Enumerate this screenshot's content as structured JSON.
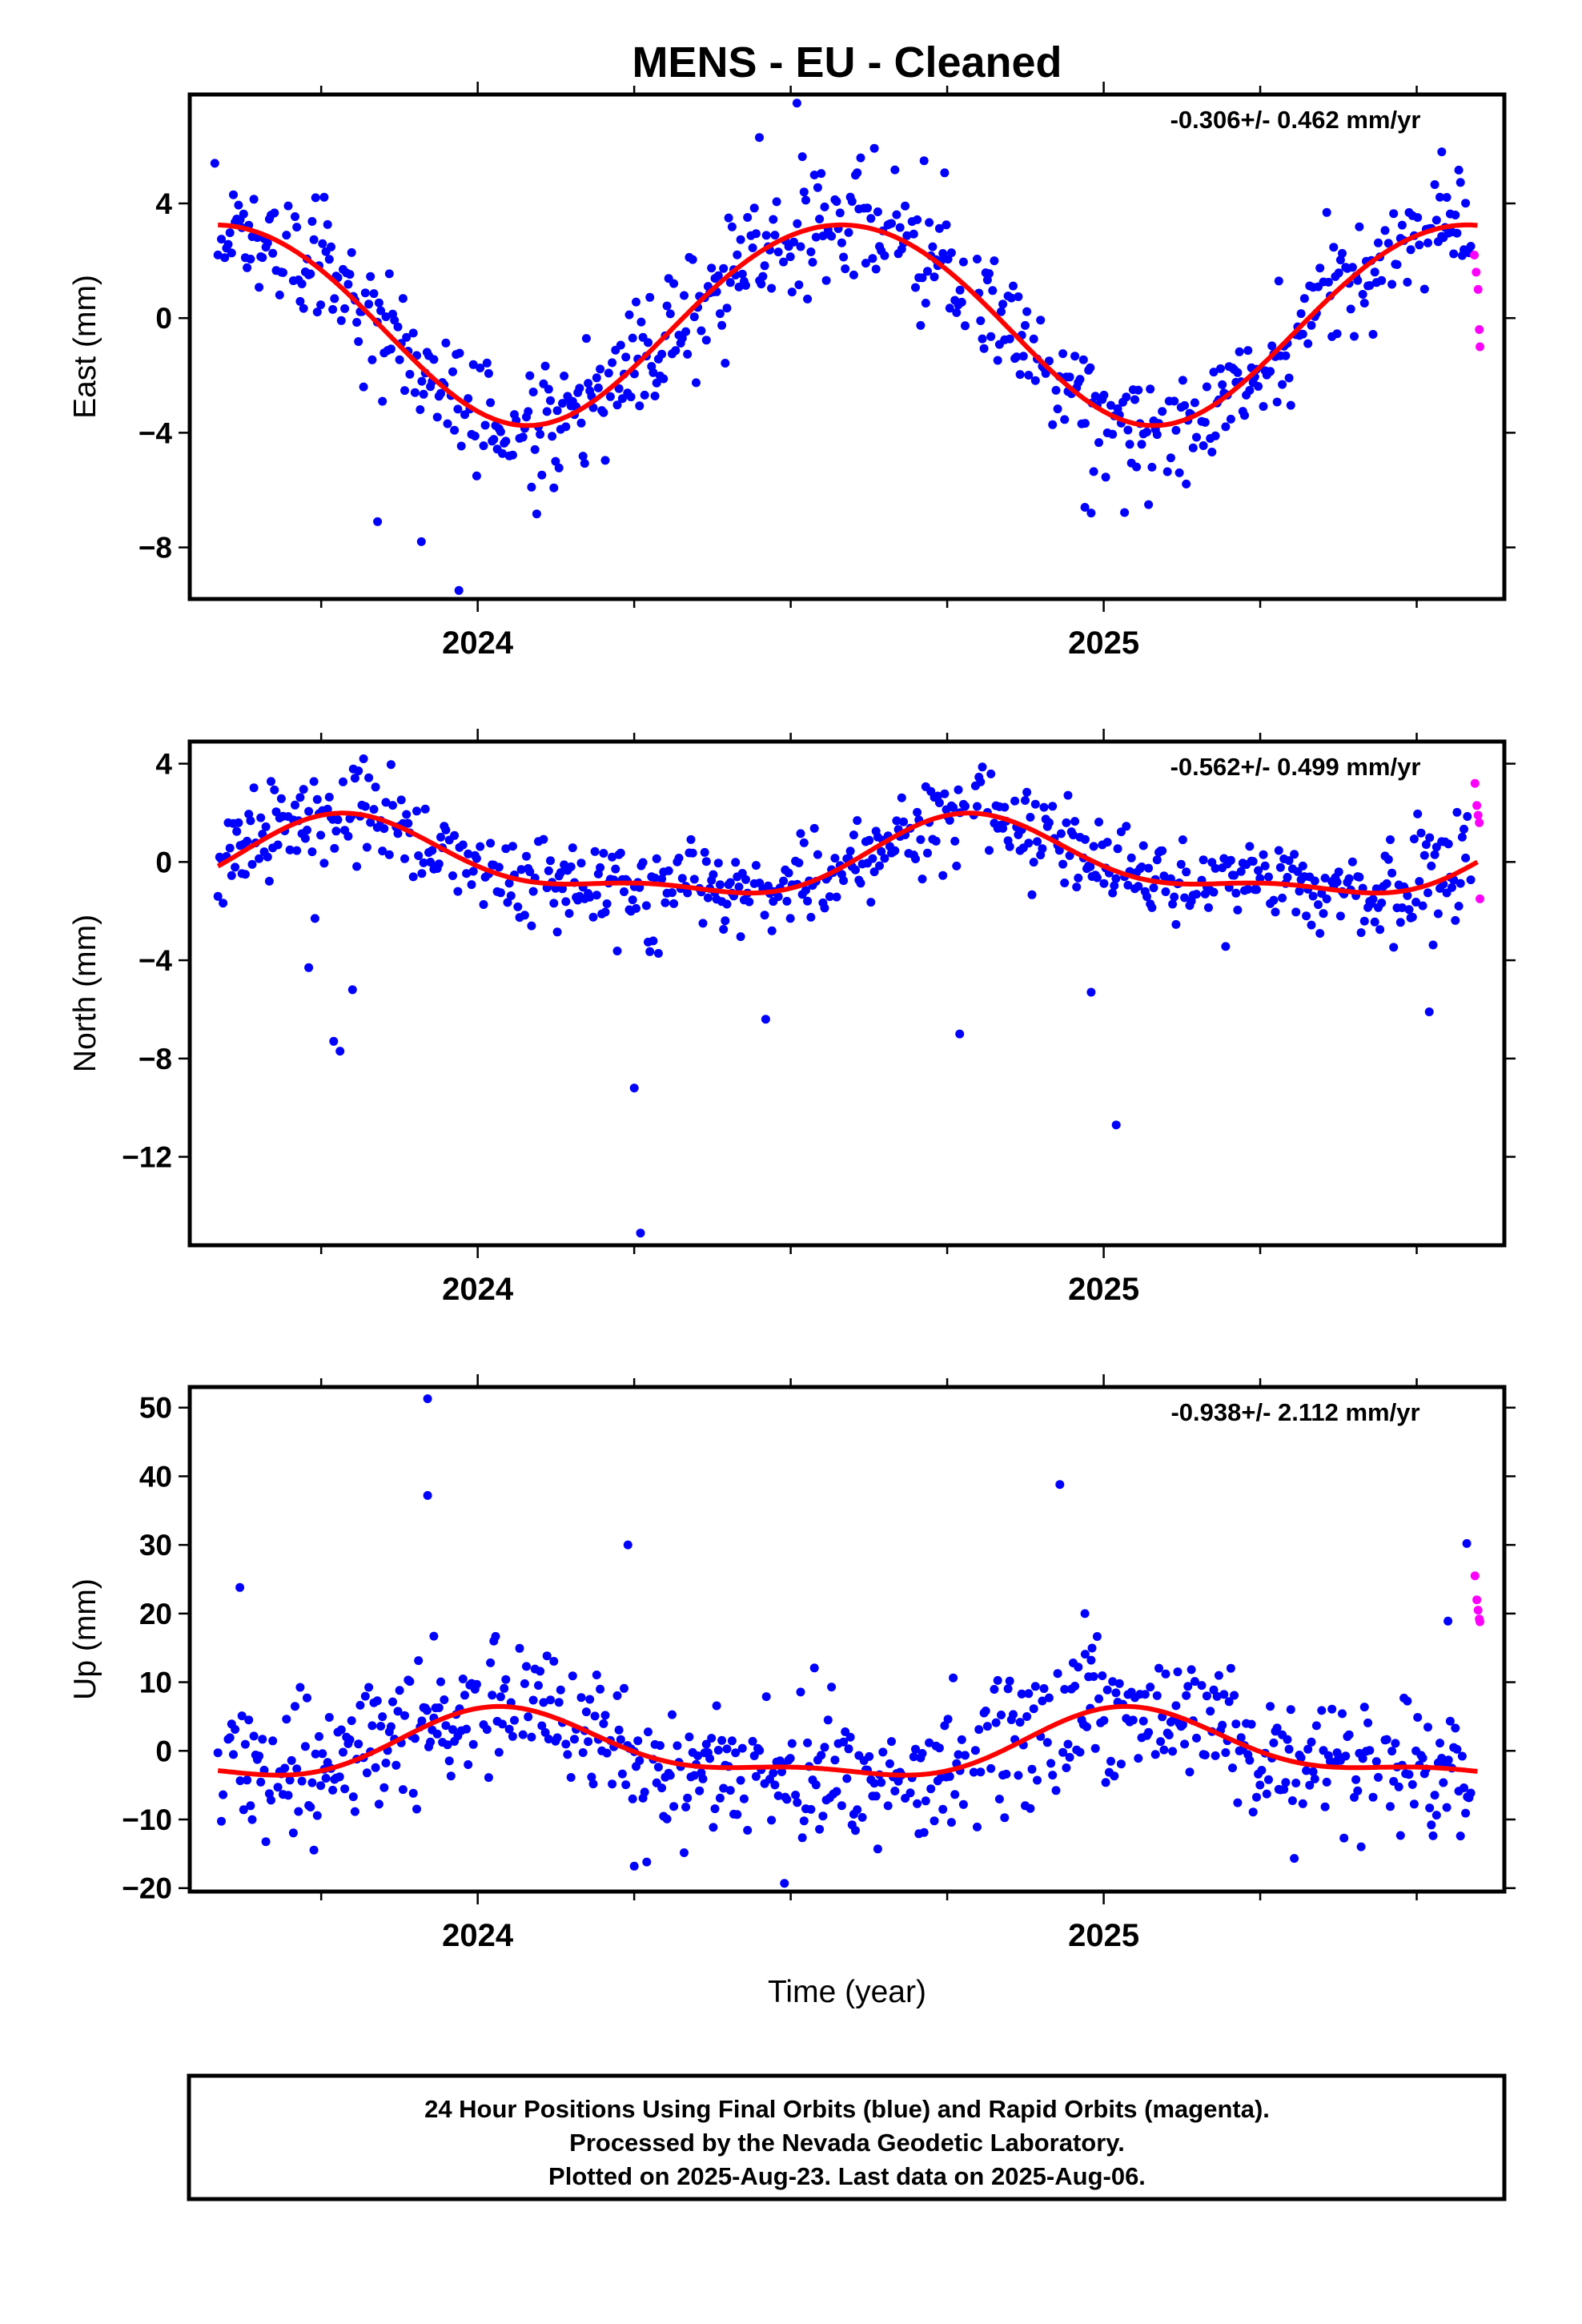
{
  "title": "MENS  - EU - Cleaned",
  "colors": {
    "final": "#0000ff",
    "rapid": "#ff00ff",
    "model": "#ff0000",
    "frame": "#000000"
  },
  "xaxis_label": "Time (year)",
  "footer": {
    "line1": "24 Hour Positions Using Final Orbits (blue) and Rapid Orbits (magenta).",
    "line2": "Processed by the Nevada Geodetic Laboratory.",
    "line3": "Plotted on 2025-Aug-23. Last data on 2025-Aug-06."
  },
  "chart_data": [
    {
      "type": "scatter",
      "panel": "east",
      "ylabel": "East (mm)",
      "rate_label": "-0.306+/- 0.462 mm/yr",
      "xlim": [
        2023.54,
        2025.64
      ],
      "ylim": [
        -9.8,
        7.8
      ],
      "yticks": [
        -8,
        -4,
        0,
        4
      ],
      "xticks": [
        2024,
        2025
      ],
      "series": [
        {
          "name": "Final Orbits",
          "color": "#0000ff",
          "seasonal": {
            "offset": -0.1,
            "amp1": 3.5,
            "phase1": 0.33,
            "amp2": 0.15,
            "phase2": 0.7,
            "noise": 1.1,
            "seed": 11
          }
        },
        {
          "name": "Rapid Orbits",
          "color": "#ff00ff",
          "x": [
            2025.592,
            2025.595,
            2025.598,
            2025.6,
            2025.601
          ],
          "y": [
            2.2,
            1.6,
            1.0,
            -0.4,
            -1.0
          ]
        },
        {
          "name": "Model",
          "color": "#ff0000",
          "type": "line",
          "seasonal": {
            "offset": -0.1,
            "amp1": 3.5,
            "phase1": 0.33,
            "amp2": 0.15,
            "phase2": 0.7
          }
        }
      ],
      "outliers": {
        "x": [
          2023.58,
          2023.84,
          2023.91,
          2023.97,
          2024.51,
          2024.45,
          2024.97,
          2024.98,
          2025.54
        ],
        "y": [
          5.4,
          -7.1,
          -7.8,
          -9.5,
          7.5,
          6.3,
          -6.6,
          -6.8,
          5.8
        ]
      }
    },
    {
      "type": "scatter",
      "panel": "north",
      "ylabel": "North (mm)",
      "rate_label": "-0.562+/- 0.499 mm/yr",
      "xlim": [
        2023.54,
        2025.64
      ],
      "ylim": [
        -15.6,
        4.9
      ],
      "yticks": [
        -12,
        -8,
        -4,
        0,
        4
      ],
      "xticks": [
        2024,
        2025
      ],
      "series": [
        {
          "name": "Final Orbits",
          "color": "#0000ff",
          "seasonal": {
            "offset": -0.05,
            "amp1": 1.45,
            "phase1": 0.55,
            "amp2": 0.6,
            "phase2": 0.15,
            "trend": 0.0,
            "noise": 0.95,
            "seed": 23
          }
        },
        {
          "name": "Rapid Orbits",
          "color": "#ff00ff",
          "x": [
            2025.593,
            2025.596,
            2025.598,
            2025.6,
            2025.601
          ],
          "y": [
            3.2,
            2.3,
            1.9,
            1.6,
            -1.5
          ]
        },
        {
          "name": "Model",
          "color": "#ff0000",
          "type": "line",
          "seasonal": {
            "offset": -0.05,
            "amp1": 1.45,
            "phase1": 0.55,
            "amp2": 0.6,
            "phase2": 0.15,
            "trend": 0.0
          }
        }
      ],
      "outliers": {
        "x": [
          2023.77,
          2023.78,
          2023.8,
          2023.74,
          2024.25,
          2024.26,
          2024.46,
          2024.47,
          2024.77,
          2024.98,
          2025.02,
          2025.52,
          2023.73
        ],
        "y": [
          -7.3,
          -7.7,
          -5.2,
          -2.3,
          -9.2,
          -15.1,
          -6.4,
          -2.8,
          -7.0,
          -5.3,
          -10.7,
          -6.1,
          -4.3
        ]
      }
    },
    {
      "type": "scatter",
      "panel": "up",
      "ylabel": "Up (mm)",
      "rate_label": "-0.938+/- 2.112 mm/yr",
      "xlim": [
        2023.54,
        2025.64
      ],
      "ylim": [
        -20.5,
        53.0
      ],
      "yticks": [
        -20,
        -10,
        0,
        10,
        20,
        30,
        40,
        50
      ],
      "xticks": [
        2024,
        2025
      ],
      "series": [
        {
          "name": "Final Orbits",
          "color": "#0000ff",
          "seasonal": {
            "offset": 0.2,
            "amp1": 4.5,
            "phase1": 0.8,
            "amp2": 1.8,
            "phase2": 0.4,
            "noise": 4.8,
            "seed": 37
          }
        },
        {
          "name": "Rapid Orbits",
          "color": "#ff00ff",
          "x": [
            2025.593,
            2025.596,
            2025.598,
            2025.6,
            2025.601
          ],
          "y": [
            25.5,
            22.0,
            20.5,
            19.2,
            18.8
          ]
        },
        {
          "name": "Model",
          "color": "#ff0000",
          "type": "line",
          "seasonal": {
            "offset": 0.2,
            "amp1": 4.5,
            "phase1": 0.8,
            "amp2": 1.8,
            "phase2": 0.4
          }
        }
      ],
      "outliers": {
        "x": [
          2023.92,
          2023.92,
          2023.93,
          2024.24,
          2024.49,
          2024.93,
          2024.97,
          2024.98,
          2025.58,
          2025.55,
          2023.62,
          2024.25,
          2024.27
        ],
        "y": [
          51.3,
          37.2,
          16.7,
          30.0,
          -19.3,
          38.8,
          20.0,
          13.2,
          30.2,
          18.9,
          23.8,
          -16.8,
          -16.2
        ]
      }
    }
  ]
}
